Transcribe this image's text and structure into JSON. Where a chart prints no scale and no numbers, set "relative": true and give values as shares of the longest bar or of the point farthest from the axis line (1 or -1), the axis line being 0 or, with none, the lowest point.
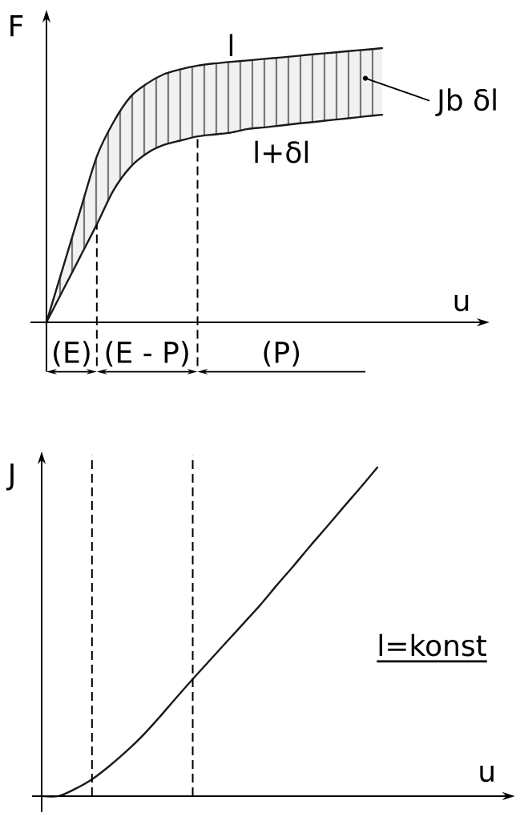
{
  "chart_data": [
    {
      "type": "line",
      "ylabel": "F",
      "xlabel": "u",
      "relative": true,
      "categories": [
        null,
        null,
        null,
        null,
        null,
        null,
        null,
        null,
        null,
        null,
        null,
        null,
        null,
        null,
        null,
        null,
        null,
        null,
        null,
        null,
        null
      ],
      "series": [
        {
          "name": "l",
          "color": "#1a1a1a",
          "values": [
            0,
            0.203,
            0.405,
            0.605,
            0.731,
            0.822,
            0.871,
            0.905,
            0.923,
            0.936,
            0.944,
            0.95,
            0.955,
            0.961,
            0.966,
            0.972,
            0.978,
            0.983,
            0.989,
            0.994,
            1
          ],
          "lower": [
            0,
            0.119,
            0.238,
            0.357,
            0.482,
            0.566,
            0.617,
            0.647,
            0.663,
            0.678,
            0.685,
            0.692,
            0.705,
            0.711,
            0.718,
            0.725,
            0.731,
            0.738,
            0.744,
            0.751,
            0.757
          ],
          "upper": [
            0,
            0.203,
            0.405,
            0.605,
            0.731,
            0.822,
            0.871,
            0.905,
            0.923,
            0.936,
            0.944,
            0.95,
            0.955,
            0.961,
            0.966,
            0.972,
            0.978,
            0.983,
            0.989,
            0.994,
            1
          ]
        },
        {
          "name": "l+δl",
          "color": "#1a1a1a",
          "values": [
            0,
            0.119,
            0.238,
            0.357,
            0.482,
            0.566,
            0.617,
            0.647,
            0.663,
            0.678,
            0.685,
            0.692,
            0.705,
            0.711,
            0.718,
            0.725,
            0.731,
            0.738,
            0.744,
            0.751,
            0.757
          ]
        }
      ],
      "annotations": [
        "(E)",
        "(E - P)",
        "(P)",
        "Jb δl"
      ],
      "legend": false,
      "marker": "none",
      "line_style": "solid"
    },
    {
      "type": "line",
      "ylabel": "J",
      "xlabel": "u",
      "relative": true,
      "categories": [
        null,
        null,
        null,
        null,
        null,
        null,
        null,
        null,
        null,
        null,
        null,
        null,
        null,
        null,
        null,
        null,
        null,
        null,
        null,
        null,
        null
      ],
      "series": [
        {
          "color": "#1a1a1a",
          "values": [
            0,
            0,
            0.022,
            0.051,
            0.09,
            0.134,
            0.183,
            0.239,
            0.298,
            0.356,
            0.412,
            0.468,
            0.524,
            0.58,
            0.641,
            0.7,
            0.761,
            0.82,
            0.88,
            0.939,
            1
          ]
        }
      ],
      "annotations": [
        "l=konst"
      ],
      "legend": false,
      "marker": "none",
      "line_style": "solid"
    }
  ]
}
